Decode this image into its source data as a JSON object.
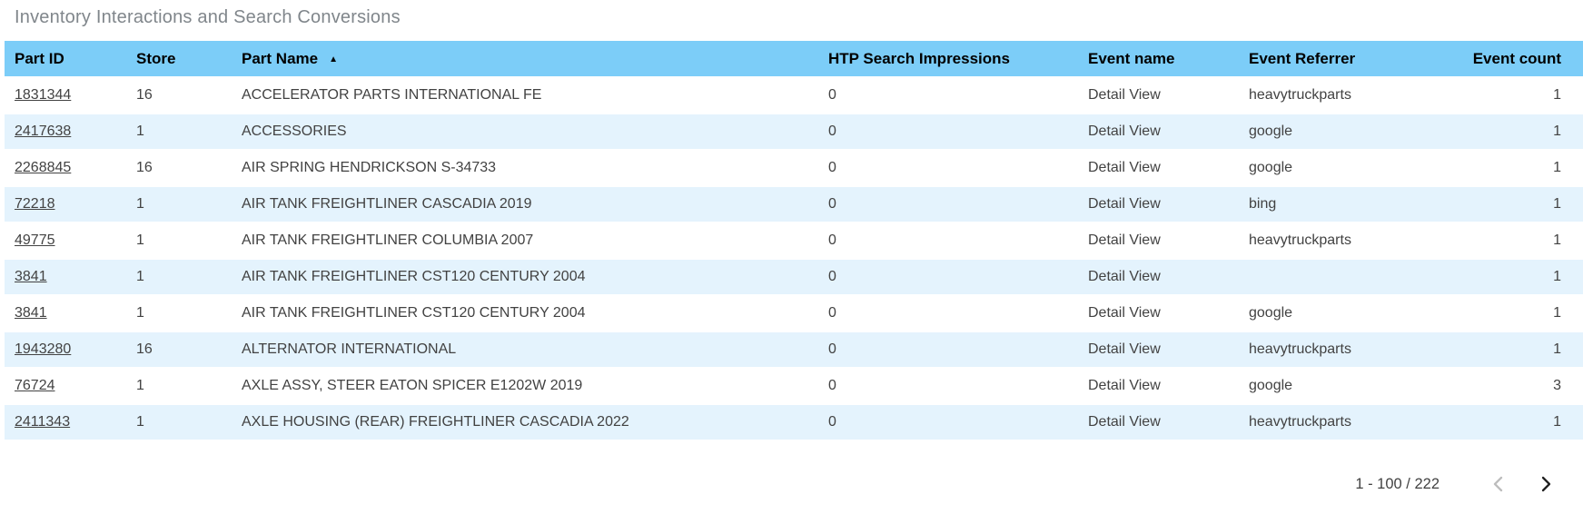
{
  "title": "Inventory Interactions and Search Conversions",
  "colors": {
    "header_bg": "#7CCDF8",
    "row_alt_bg": "#E4F3FD",
    "body_text": "#424242",
    "title_text": "#80868B",
    "chevron_disabled": "#BDBDBD",
    "chevron_enabled": "#212121"
  },
  "table": {
    "columns": [
      {
        "label": "Part ID",
        "align": "left"
      },
      {
        "label": "Store",
        "align": "left"
      },
      {
        "label": "Part Name",
        "align": "left",
        "sorted": "ascending"
      },
      {
        "label": "HTP Search Impressions",
        "align": "left"
      },
      {
        "label": "Event name",
        "align": "left"
      },
      {
        "label": "Event Referrer",
        "align": "left"
      },
      {
        "label": "Event count",
        "align": "right"
      }
    ],
    "sort_indicator": "▲",
    "rows": [
      [
        "1831344",
        "16",
        "ACCELERATOR PARTS INTERNATIONAL FE",
        "0",
        "Detail View",
        "heavytruckparts",
        "1"
      ],
      [
        "2417638",
        "1",
        "ACCESSORIES",
        "0",
        "Detail View",
        "google",
        "1"
      ],
      [
        "2268845",
        "16",
        "AIR SPRING HENDRICKSON S-34733",
        "0",
        "Detail View",
        "google",
        "1"
      ],
      [
        "72218",
        "1",
        "AIR TANK FREIGHTLINER CASCADIA 2019",
        "0",
        "Detail View",
        "bing",
        "1"
      ],
      [
        "49775",
        "1",
        "AIR TANK FREIGHTLINER COLUMBIA 2007",
        "0",
        "Detail View",
        "heavytruckparts",
        "1"
      ],
      [
        "3841",
        "1",
        "AIR TANK FREIGHTLINER CST120 CENTURY 2004",
        "0",
        "Detail View",
        "",
        "1"
      ],
      [
        "3841",
        "1",
        "AIR TANK FREIGHTLINER CST120 CENTURY 2004",
        "0",
        "Detail View",
        "google",
        "1"
      ],
      [
        "1943280",
        "16",
        "ALTERNATOR INTERNATIONAL",
        "0",
        "Detail View",
        "heavytruckparts",
        "1"
      ],
      [
        "76724",
        "1",
        "AXLE ASSY, STEER EATON SPICER E1202W 2019",
        "0",
        "Detail View",
        "google",
        "3"
      ],
      [
        "2411343",
        "1",
        "AXLE HOUSING (REAR) FREIGHTLINER CASCADIA 2022",
        "0",
        "Detail View",
        "heavytruckparts",
        "1"
      ]
    ]
  },
  "pagination": {
    "range_label": "1 - 100 / 222",
    "prev_enabled": false,
    "next_enabled": true
  }
}
